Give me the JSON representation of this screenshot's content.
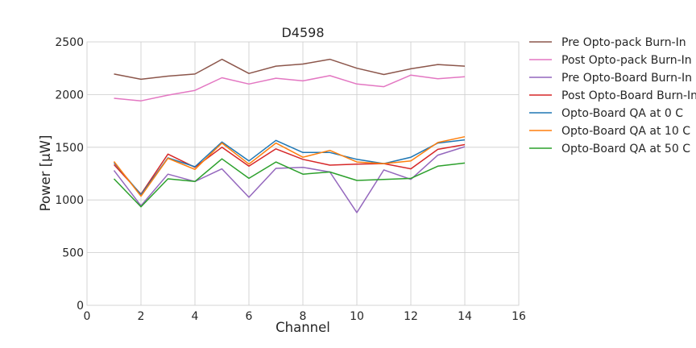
{
  "chart_data": {
    "type": "line",
    "title": "D4598",
    "xlabel": "Channel",
    "ylabel": "Power [μW]",
    "xlim": [
      0,
      16
    ],
    "ylim": [
      0,
      2500
    ],
    "xticks": [
      0,
      2,
      4,
      6,
      8,
      10,
      12,
      14,
      16
    ],
    "yticks": [
      0,
      500,
      1000,
      1500,
      2000,
      2500
    ],
    "grid": true,
    "legend_placement": "outside-right",
    "x": [
      1,
      2,
      3,
      4,
      5,
      6,
      7,
      8,
      9,
      10,
      11,
      12,
      13,
      14
    ],
    "series": [
      {
        "name": "Pre Opto-pack Burn-In",
        "color": "#8c564b",
        "values": [
          2195,
          2145,
          2175,
          2195,
          2335,
          2200,
          2270,
          2290,
          2335,
          2250,
          2190,
          2245,
          2285,
          2270
        ]
      },
      {
        "name": "Post Opto-pack Burn-In",
        "color": "#e377c2",
        "values": [
          1965,
          1940,
          1995,
          2040,
          2160,
          2100,
          2155,
          2130,
          2180,
          2100,
          2075,
          2185,
          2150,
          2170
        ]
      },
      {
        "name": "Pre Opto-Board Burn-In",
        "color": "#9467bd",
        "values": [
          1280,
          945,
          1245,
          1175,
          1295,
          1025,
          1300,
          1310,
          1265,
          880,
          1285,
          1195,
          1425,
          1505
        ]
      },
      {
        "name": "Post Opto-Board Burn-In",
        "color": "#d62728",
        "values": [
          1335,
          1055,
          1435,
          1310,
          1500,
          1320,
          1485,
          1385,
          1330,
          1340,
          1345,
          1295,
          1480,
          1525
        ]
      },
      {
        "name": "Opto-Board QA at 0 C",
        "color": "#1f77b4",
        "values": [
          1355,
          1050,
          1400,
          1315,
          1550,
          1370,
          1565,
          1450,
          1450,
          1385,
          1345,
          1405,
          1540,
          1570
        ]
      },
      {
        "name": "Opto-Board QA at 10 C",
        "color": "#ff7f0e",
        "values": [
          1365,
          1035,
          1395,
          1290,
          1540,
          1340,
          1540,
          1405,
          1470,
          1360,
          1345,
          1370,
          1545,
          1600
        ]
      },
      {
        "name": "Opto-Board QA at 50 C",
        "color": "#2ca02c",
        "values": [
          1200,
          935,
          1200,
          1175,
          1390,
          1205,
          1360,
          1245,
          1265,
          1185,
          1195,
          1205,
          1320,
          1350
        ]
      }
    ]
  }
}
